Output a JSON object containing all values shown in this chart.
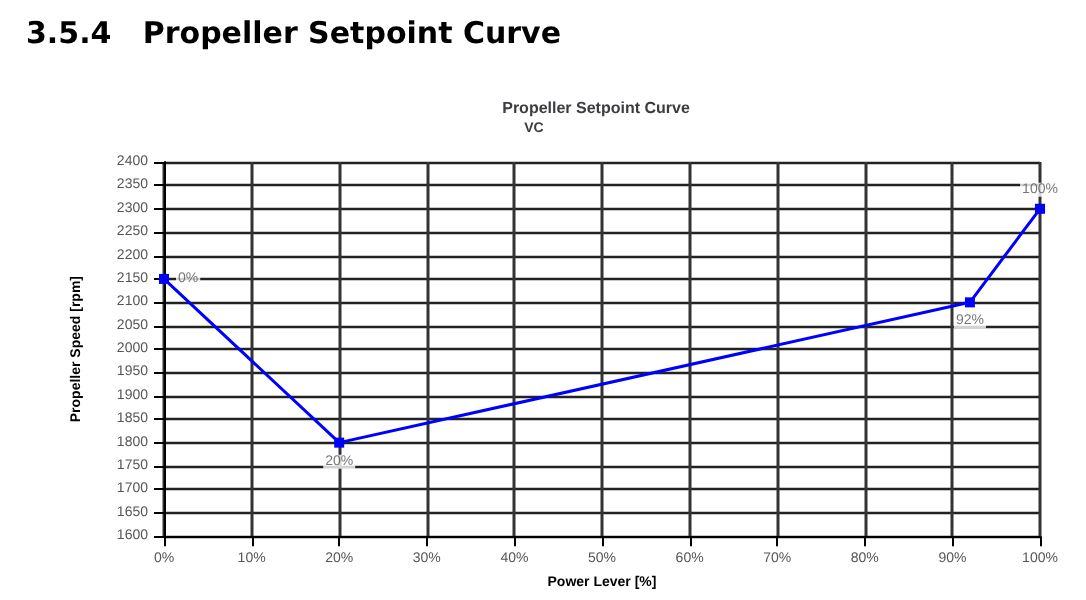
{
  "chart_data": {
    "type": "line",
    "title": "Propeller Setpoint Curve",
    "subtitle": "VC",
    "annotations": [
      "3.5.4   Propeller Setpoint Curve",
      {
        "text": "0%",
        "x": 0,
        "y": 2150
      },
      {
        "text": "20%",
        "x": 20,
        "y": 1800
      },
      {
        "text": "92%",
        "x": 92,
        "y": 2100
      },
      {
        "text": "100%",
        "x": 100,
        "y": 2300
      }
    ],
    "xlabel": "Power Lever [%]",
    "ylabel": "Propeller Speed [rpm]",
    "x": [
      0,
      20,
      92,
      100
    ],
    "series": [
      {
        "color": "#0000ff",
        "values": [
          2150,
          1800,
          2100,
          2300
        ]
      }
    ],
    "xlim": [
      0,
      100
    ],
    "xticks": [
      {
        "value": 0,
        "label": "0%"
      },
      {
        "value": 10,
        "label": "10%"
      },
      {
        "value": 20,
        "label": "20%"
      },
      {
        "value": 30,
        "label": "30%"
      },
      {
        "value": 40,
        "label": "40%"
      },
      {
        "value": 50,
        "label": "50%"
      },
      {
        "value": 60,
        "label": "60%"
      },
      {
        "value": 70,
        "label": "70%"
      },
      {
        "value": 80,
        "label": "80%"
      },
      {
        "value": 90,
        "label": "90%"
      },
      {
        "value": 100,
        "label": "100%"
      }
    ],
    "ylim": [
      1600,
      2400
    ],
    "yticks": [
      1600,
      1650,
      1700,
      1750,
      1800,
      1850,
      1900,
      1950,
      2000,
      2050,
      2100,
      2150,
      2200,
      2250,
      2300,
      2350,
      2400
    ],
    "grid": true,
    "marker": "square",
    "line_style": "solid"
  }
}
